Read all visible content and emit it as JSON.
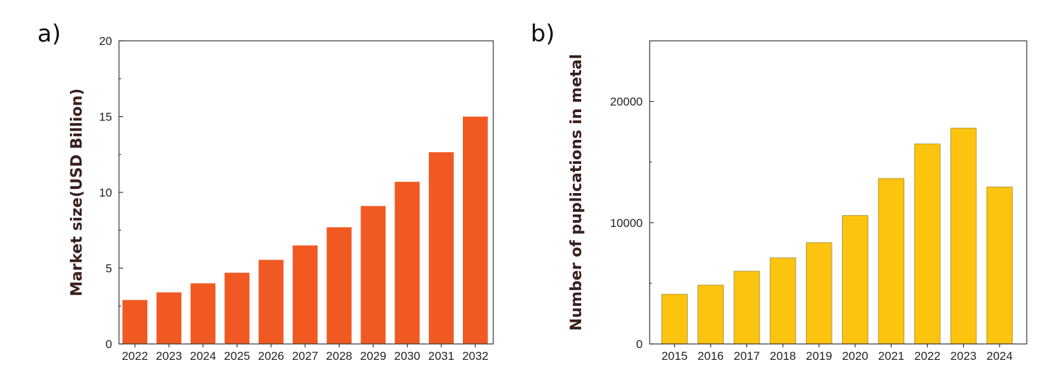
{
  "chart_data": [
    {
      "type": "bar",
      "panel_label": "a)",
      "title": "",
      "xlabel": "",
      "ylabel": "Market size(USD Billion)",
      "categories": [
        "2022",
        "2023",
        "2024",
        "2025",
        "2026",
        "2027",
        "2028",
        "2029",
        "2030",
        "2031",
        "2032"
      ],
      "values": [
        2.9,
        3.4,
        4.0,
        4.7,
        5.55,
        6.5,
        7.7,
        9.1,
        10.7,
        12.65,
        15.0
      ],
      "ylim": [
        0,
        20
      ],
      "yticks": [
        0,
        5,
        10,
        15,
        20
      ],
      "bar_color": "#f05a22",
      "grid": false,
      "legend": "none"
    },
    {
      "type": "bar",
      "panel_label": "b)",
      "title": "",
      "xlabel": "",
      "ylabel": "Number of puplications in metal",
      "categories": [
        "2015",
        "2016",
        "2017",
        "2018",
        "2019",
        "2020",
        "2021",
        "2022",
        "2023",
        "2024"
      ],
      "values": [
        4100,
        4850,
        6000,
        7100,
        8350,
        10600,
        13650,
        16500,
        17800,
        12950
      ],
      "ylim": [
        0,
        25000
      ],
      "yticks": [
        0,
        10000,
        20000
      ],
      "bar_color": "#fcc30f",
      "bar_edge_color": "#a08a3a",
      "grid": false,
      "legend": "none"
    }
  ]
}
